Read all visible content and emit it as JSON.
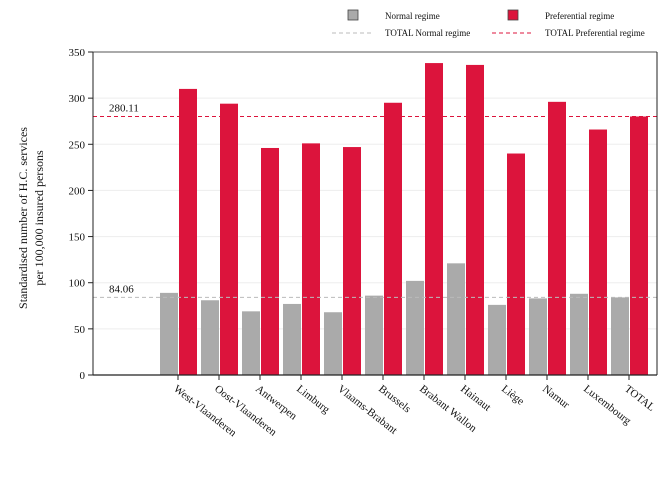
{
  "chart_data": {
    "type": "bar",
    "title": "",
    "xlabel": "",
    "ylabel_lines": [
      "Standardised number of H.C. services",
      "per 100,000 insured persons"
    ],
    "ylim": [
      0,
      350
    ],
    "yticks": [
      0,
      50,
      100,
      150,
      200,
      250,
      300,
      350
    ],
    "grid": true,
    "legend_position": "top-right",
    "categories": [
      "West-Vlaanderen",
      "Oost-Vlaanderen",
      "Antwerpen",
      "Limburg",
      "Vlaams-Brabant",
      "Brussels",
      "Brabant Wallon",
      "Hainaut",
      "Liège",
      "Namur",
      "Luxembourg",
      "TOTAL"
    ],
    "series": [
      {
        "name": "Normal regime",
        "color": "#aaaaaa",
        "values": [
          89,
          81,
          69,
          77,
          68,
          86,
          102,
          121,
          76,
          83,
          88,
          84.06
        ]
      },
      {
        "name": "Preferential regime",
        "color": "#dc143c",
        "values": [
          310,
          294,
          246,
          251,
          247,
          295,
          338,
          336,
          240,
          296,
          266,
          280.11
        ]
      }
    ],
    "reference_lines": [
      {
        "name": "TOTAL Normal regime",
        "value": 84.06,
        "label": "84.06",
        "color": "#bbbbbb"
      },
      {
        "name": "TOTAL Preferential regime",
        "value": 280.11,
        "label": "280.11",
        "color": "#dc143c"
      }
    ]
  }
}
